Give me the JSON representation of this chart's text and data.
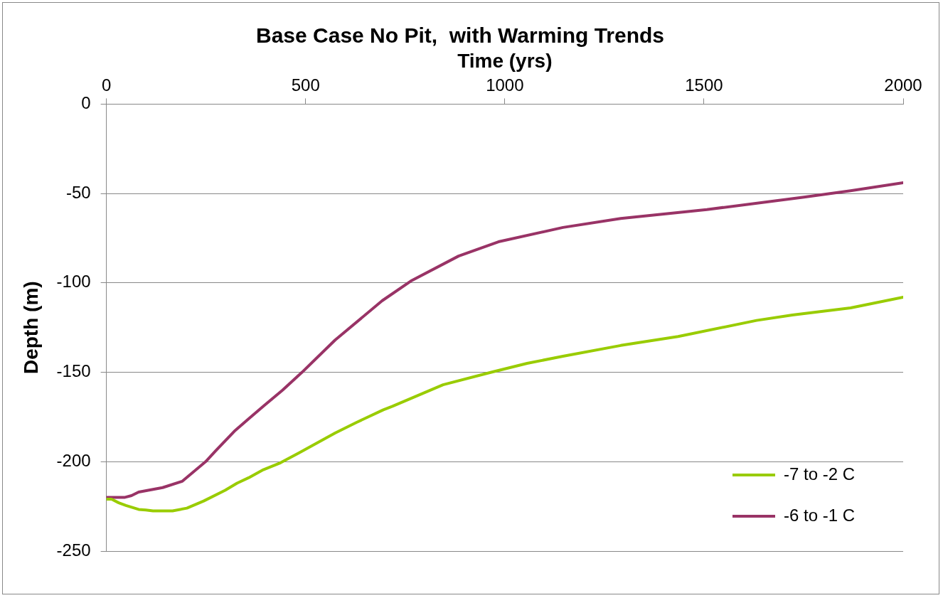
{
  "chart_data": {
    "type": "line",
    "title": "Base Case No Pit,  with Warming Trends",
    "xlabel": "Time (yrs)",
    "ylabel": "Depth (m)",
    "xlim": [
      0,
      2000
    ],
    "xticks": [
      0,
      500,
      1000,
      1500,
      2000
    ],
    "ylim": [
      -250,
      0
    ],
    "yticks": [
      -250,
      -200,
      -150,
      -100,
      -50,
      0
    ],
    "grid": "y",
    "legend": "bottom right",
    "marker": "none",
    "line_style": "solid",
    "series": [
      {
        "name": "-7 to -2 C",
        "color": "#99cc00",
        "x": [
          0,
          13,
          31,
          49,
          81,
          99,
          117,
          166,
          202,
          244,
          298,
          328,
          357,
          394,
          437,
          484,
          574,
          628,
          695,
          718,
          845,
          966,
          1056,
          1146,
          1291,
          1435,
          1632,
          1722,
          1868,
          2000
        ],
        "values": [
          -221,
          -221,
          -223,
          -224.5,
          -226.7,
          -227,
          -227.5,
          -227.5,
          -226,
          -222,
          -216,
          -212,
          -209,
          -204.5,
          -200.6,
          -195,
          -184,
          -178,
          -171,
          -169,
          -157,
          -150,
          -145,
          -141,
          -135,
          -130,
          -121,
          -118,
          -114,
          -108
        ]
      },
      {
        "name": "-6 to -1 C",
        "color": "#993366",
        "x": [
          0,
          45,
          63,
          81,
          105,
          141,
          190,
          249,
          274,
          321,
          357,
          394,
          442,
          491,
          574,
          692,
          764,
          884,
          984,
          1146,
          1291,
          1507,
          1751,
          1868,
          2000
        ],
        "values": [
          -220,
          -220,
          -219,
          -217,
          -216,
          -214.5,
          -211,
          -200,
          -194,
          -183,
          -176,
          -169,
          -160,
          -150,
          -132,
          -110,
          -99,
          -85,
          -77,
          -69,
          -64,
          -59,
          -52,
          -48.5,
          -44
        ]
      }
    ]
  }
}
